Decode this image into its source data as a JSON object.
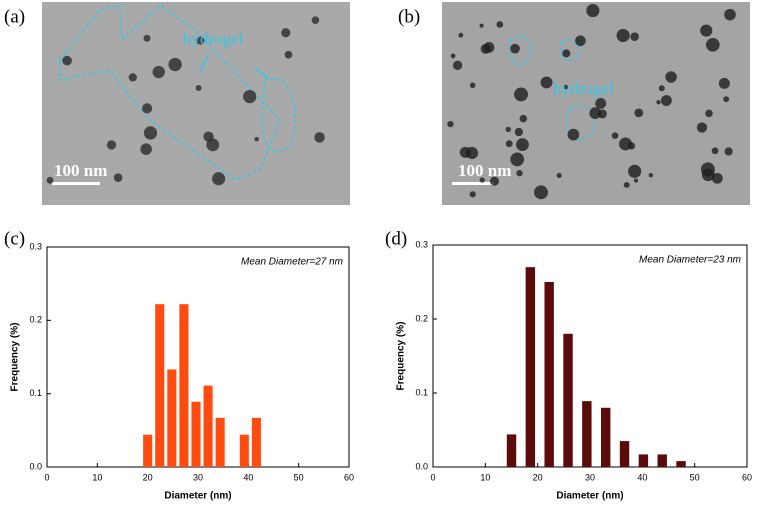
{
  "images": [
    {
      "panel_label": "(a)",
      "annotation": "hydrogel",
      "scale_bar": "100 nm"
    },
    {
      "panel_label": "(b)",
      "annotation": "hydrogel",
      "scale_bar": "100 nm"
    }
  ],
  "chart_data": [
    {
      "type": "bar",
      "panel_label": "(c)",
      "annotation": "Mean Diameter=27 nm",
      "x_label": "Diameter (nm)",
      "y_label": "Frequency (%)",
      "x": [
        20,
        22.4,
        24.8,
        27.2,
        29.6,
        32,
        34.4,
        39.2,
        41.6
      ],
      "values": [
        0.044,
        0.222,
        0.133,
        0.222,
        0.089,
        0.111,
        0.067,
        0.044,
        0.067
      ],
      "color": "#ff4a10",
      "xlim": [
        0,
        60
      ],
      "xticks": [
        0,
        10,
        20,
        30,
        40,
        50,
        60
      ],
      "ylim": [
        0,
        0.3
      ],
      "yticks": [
        {
          "value": 0,
          "label": "0.0"
        },
        0.1,
        0.2,
        0.3
      ]
    },
    {
      "type": "bar",
      "panel_label": "(d)",
      "annotation": "Mean Diameter=23 nm",
      "x_label": "Diameter (nm)",
      "y_label": "Frequency (%)",
      "x": [
        15,
        18.6,
        22.2,
        25.8,
        29.4,
        33,
        36.6,
        40.2,
        43.8,
        47.4
      ],
      "values": [
        0.044,
        0.27,
        0.25,
        0.18,
        0.089,
        0.08,
        0.035,
        0.017,
        0.017,
        0.008
      ],
      "color": "#5c0b0b",
      "xlim": [
        0,
        60
      ],
      "xticks": [
        0,
        10,
        20,
        30,
        40,
        50,
        60
      ],
      "ylim": [
        0,
        0.3
      ],
      "yticks": [
        {
          "value": 0,
          "label": "0.0"
        },
        0.1,
        0.2,
        0.3
      ]
    }
  ]
}
